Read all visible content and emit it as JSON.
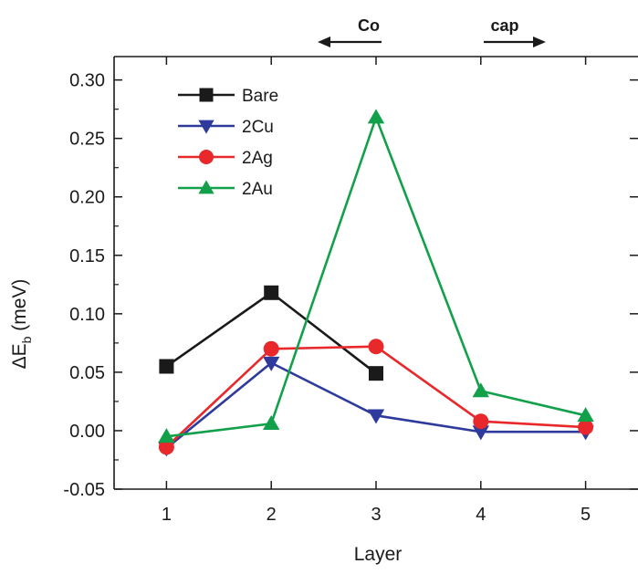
{
  "chart_data": {
    "type": "line",
    "xlabel": "Layer",
    "ylabel_main": "ΔE",
    "ylabel_sub": "b",
    "ylabel_unit": " (meV)",
    "xlim": [
      0.5,
      5.5
    ],
    "ylim": [
      -0.05,
      0.32
    ],
    "x_ticks": [
      1,
      2,
      3,
      4,
      5
    ],
    "x_tick_labels": [
      "1",
      "2",
      "3",
      "4",
      "5"
    ],
    "y_ticks": [
      -0.05,
      0.0,
      0.05,
      0.1,
      0.15,
      0.2,
      0.25,
      0.3
    ],
    "y_tick_labels": [
      "-0.05",
      "0.00",
      "0.05",
      "0.10",
      "0.15",
      "0.20",
      "0.25",
      "0.30"
    ],
    "grid": false,
    "legend_position": "top-left",
    "annotations": [
      {
        "text": "Co",
        "arrow": "left"
      },
      {
        "text": "cap",
        "arrow": "right"
      }
    ],
    "series": [
      {
        "name": "Bare",
        "color": "#1a1a1a",
        "marker": "square",
        "x": [
          1,
          2,
          3
        ],
        "y": [
          0.055,
          0.118,
          0.049
        ]
      },
      {
        "name": "2Cu",
        "color": "#2e3a9c",
        "marker": "triangle-down",
        "x": [
          1,
          2,
          3,
          4,
          5
        ],
        "y": [
          -0.015,
          0.058,
          0.013,
          -0.001,
          -0.001
        ]
      },
      {
        "name": "2Ag",
        "color": "#e8282a",
        "marker": "circle",
        "x": [
          1,
          2,
          3,
          4,
          5
        ],
        "y": [
          -0.014,
          0.07,
          0.072,
          0.008,
          0.003
        ]
      },
      {
        "name": "2Au",
        "color": "#12a04a",
        "marker": "triangle-up",
        "x": [
          1,
          2,
          3,
          4,
          5
        ],
        "y": [
          -0.005,
          0.006,
          0.268,
          0.034,
          0.013
        ]
      }
    ]
  }
}
